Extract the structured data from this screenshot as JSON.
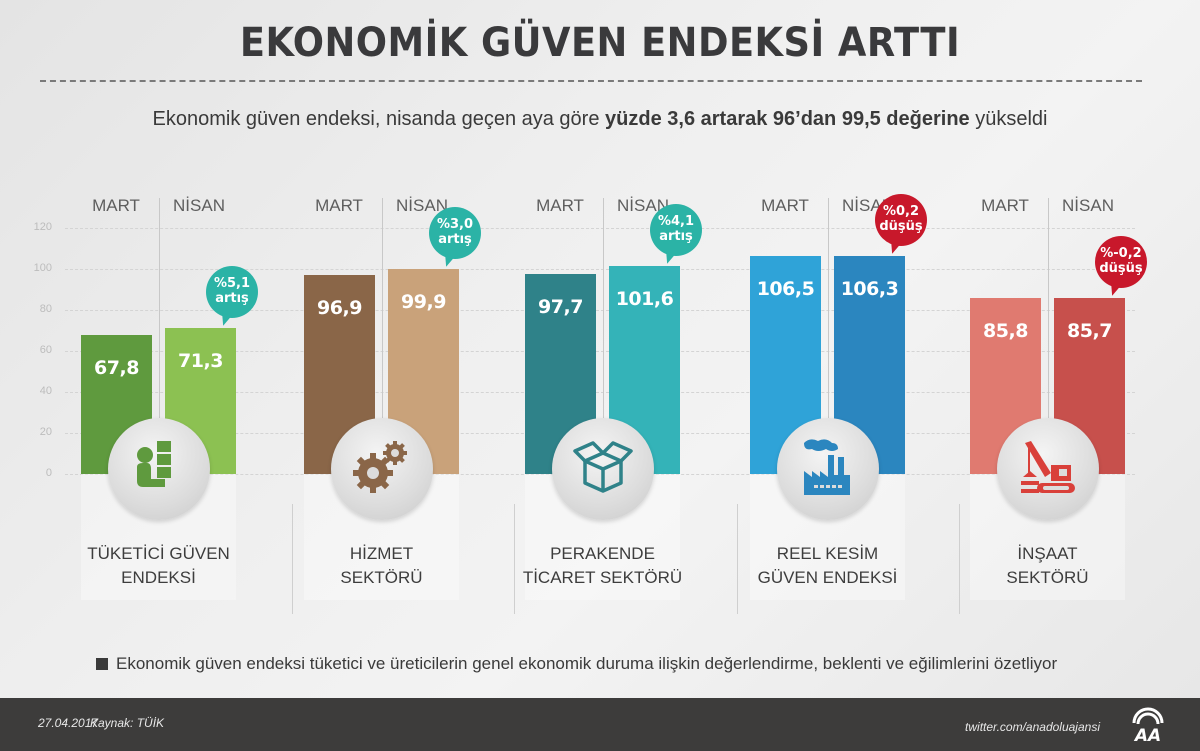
{
  "header": {
    "title": "EKONOMİK GÜVEN ENDEKSİ ARTTI",
    "subtitle_plain_1": "Ekonomik güven endeksi, nisanda geçen aya göre ",
    "subtitle_bold": "yüzde 3,6 artarak 96’dan 99,5 değerine",
    "subtitle_plain_2": " yükseldi"
  },
  "axis": {
    "ticks": [
      "120",
      "100",
      "80",
      "60",
      "40",
      "20",
      "0"
    ]
  },
  "groups": [
    {
      "label_line1": "TÜKETİCİ GÜVEN",
      "label_line2": "ENDEKSİ",
      "mart_label": "MART",
      "nisan_label": "NİSAN",
      "mart_value": "67,8",
      "nisan_value": "71,3",
      "change_pct": "%5,1",
      "change_word": "artış",
      "mart_color": "#5f9a3e",
      "nisan_color": "#8cc152",
      "bubble_color": "#2bb3a6",
      "icon": "worker-with-boxes-icon"
    },
    {
      "label_line1": "HİZMET",
      "label_line2": "SEKTÖRÜ",
      "mart_label": "MART",
      "nisan_label": "NİSAN",
      "mart_value": "96,9",
      "nisan_value": "99,9",
      "change_pct": "%3,0",
      "change_word": "artış",
      "mart_color": "#8a6648",
      "nisan_color": "#c9a27a",
      "bubble_color": "#2bb3a6",
      "icon": "gears-icon"
    },
    {
      "label_line1": "PERAKENDE",
      "label_line2": "TİCARET SEKTÖRÜ",
      "mart_label": "MART",
      "nisan_label": "NİSAN",
      "mart_value": "97,7",
      "nisan_value": "101,6",
      "change_pct": "%4,1",
      "change_word": "artış",
      "mart_color": "#2f8289",
      "nisan_color": "#34b3b8",
      "bubble_color": "#2bb3a6",
      "icon": "open-box-icon"
    },
    {
      "label_line1": "REEL KESİM",
      "label_line2": "GÜVEN ENDEKSİ",
      "mart_label": "MART",
      "nisan_label": "NİSAN",
      "mart_value": "106,5",
      "nisan_value": "106,3",
      "change_pct": "%0,2",
      "change_word": "düşüş",
      "mart_color": "#2fa3d8",
      "nisan_color": "#2b86bf",
      "bubble_color": "#c8182b",
      "icon": "factory-icon"
    },
    {
      "label_line1": "İNŞAAT",
      "label_line2": "SEKTÖRÜ",
      "mart_label": "MART",
      "nisan_label": "NİSAN",
      "mart_value": "85,8",
      "nisan_value": "85,7",
      "change_pct": "%-0,2",
      "change_word": "düşüş",
      "mart_color": "#e07a70",
      "nisan_color": "#c7504c",
      "bubble_color": "#c8182b",
      "icon": "crane-icon"
    }
  ],
  "note": "Ekonomik güven endeksi tüketici ve üreticilerin genel ekonomik duruma ilişkin değerlendirme, beklenti ve eğilimlerini özetliyor",
  "footer": {
    "date": "27.04.2017",
    "source": "Kaynak: TÜİK",
    "twitter": "twitter.com/anadoluajansi",
    "logo": "AA"
  },
  "chart_data": {
    "type": "bar",
    "title": "EKONOMİK GÜVEN ENDEKSİ ARTTI",
    "subtitle": "Ekonomik güven endeksi, nisanda geçen aya göre yüzde 3,6 artarak 96’dan 99,5 değerine yükseldi",
    "categories": [
      "TÜKETİCİ GÜVEN ENDEKSİ",
      "HİZMET SEKTÖRÜ",
      "PERAKENDE TİCARET SEKTÖRÜ",
      "REEL KESİM GÜVEN ENDEKSİ",
      "İNŞAAT SEKTÖRÜ"
    ],
    "series": [
      {
        "name": "MART",
        "values": [
          67.8,
          96.9,
          97.7,
          106.5,
          85.8
        ]
      },
      {
        "name": "NİSAN",
        "values": [
          71.3,
          99.9,
          101.6,
          106.3,
          85.7
        ]
      }
    ],
    "annotations": [
      "%5,1 artış",
      "%3,0 artış",
      "%4,1 artış",
      "%0,2 düşüş",
      "%-0,2 düşüş"
    ],
    "xlabel": "",
    "ylabel": "",
    "ylim": [
      0,
      120
    ],
    "yticks": [
      0,
      20,
      40,
      60,
      80,
      100,
      120
    ],
    "grid": true,
    "legend_position": "top-of-each-group"
  }
}
